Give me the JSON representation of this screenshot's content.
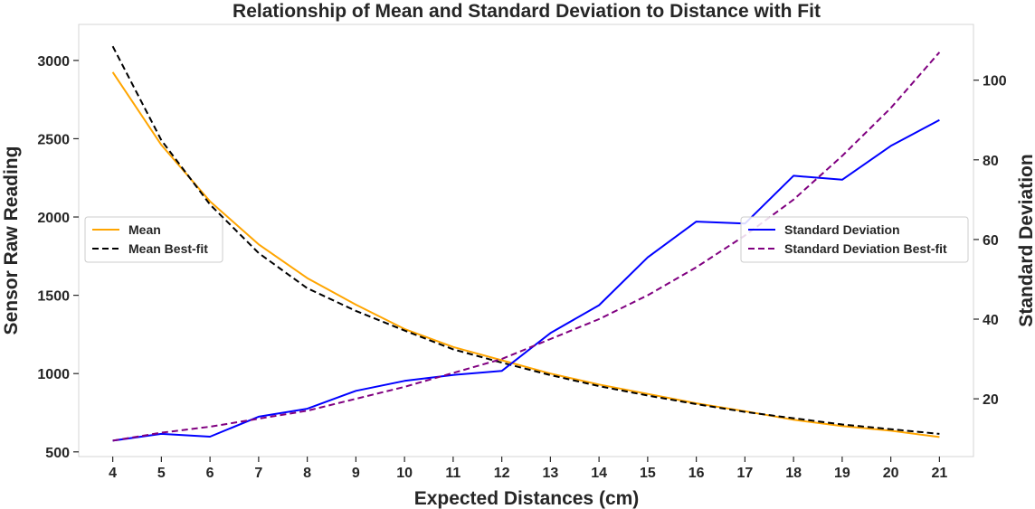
{
  "chart_data": {
    "type": "line",
    "title": "Relationship of Mean and Standard Deviation to Distance with Fit",
    "xlabel": "Expected Distances (cm)",
    "ylabel_left": "Sensor Raw Reading",
    "ylabel_right": "Standard Deviation",
    "x": [
      4,
      5,
      6,
      7,
      8,
      9,
      10,
      11,
      12,
      13,
      14,
      15,
      16,
      17,
      18,
      19,
      20,
      21
    ],
    "xlim": [
      3.3,
      21.7
    ],
    "ylim_left": [
      470,
      3230
    ],
    "ylim_right": [
      5.5,
      114
    ],
    "yticks_left": [
      500,
      1000,
      1500,
      2000,
      2500,
      3000
    ],
    "yticks_right": [
      20,
      40,
      60,
      80,
      100
    ],
    "grid": false,
    "series": [
      {
        "name": "Mean",
        "axis": "left",
        "style": "solid",
        "color": "#FFA500",
        "values": [
          2925,
          2460,
          2100,
          1825,
          1610,
          1440,
          1285,
          1170,
          1085,
          1000,
          930,
          870,
          810,
          760,
          705,
          665,
          635,
          595
        ]
      },
      {
        "name": "Mean Best-fit",
        "axis": "left",
        "style": "dashed",
        "color": "#000000",
        "values": [
          3090,
          2490,
          2080,
          1770,
          1545,
          1400,
          1275,
          1155,
          1070,
          990,
          920,
          860,
          805,
          755,
          715,
          675,
          645,
          615
        ]
      },
      {
        "name": "Standard Deviation",
        "axis": "right",
        "style": "solid",
        "color": "#0000FF",
        "values": [
          9.5,
          11.2,
          10.5,
          15.5,
          17.5,
          22.0,
          24.5,
          26.0,
          27.0,
          36.5,
          43.5,
          55.5,
          64.5,
          64.0,
          76.0,
          75.0,
          83.5,
          90.0
        ]
      },
      {
        "name": "Standard Deviation Best-fit",
        "axis": "right",
        "style": "dashed",
        "color": "#800080",
        "values": [
          9.5,
          11.5,
          13.0,
          15.0,
          17.0,
          20.0,
          23.0,
          26.5,
          30.0,
          35.0,
          40.0,
          46.0,
          53.0,
          61.0,
          70.0,
          81.0,
          93.0,
          107.0
        ]
      }
    ],
    "legends": [
      {
        "placement": "center-left",
        "entries": [
          "Mean",
          "Mean Best-fit"
        ]
      },
      {
        "placement": "center-right",
        "entries": [
          "Standard Deviation",
          "Standard Deviation Best-fit"
        ]
      }
    ]
  }
}
